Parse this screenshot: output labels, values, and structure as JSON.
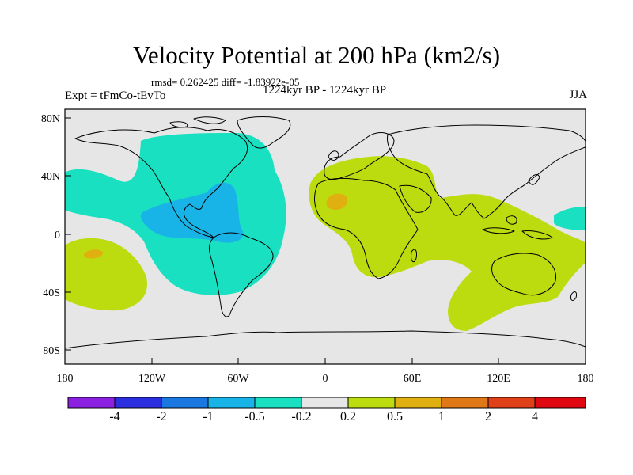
{
  "header": {
    "title": "Velocity Potential at 200 hPa (km2/s)",
    "stats": "rmsd= 0.262425 diff= -1.83922e-05",
    "period": "1224kyr BP - 1224kyr BP",
    "experiment": "Expt = tFmCo-tEvTo",
    "season": "JJA"
  },
  "axes": {
    "lat_labels": [
      "80N",
      "40N",
      "0",
      "40S",
      "80S"
    ],
    "lon_labels": [
      "180",
      "120W",
      "60W",
      "0",
      "60E",
      "120E",
      "180"
    ]
  },
  "colorbar": {
    "colors": [
      "#8c20e0",
      "#2b2fe0",
      "#1a78e0",
      "#18b4e8",
      "#18e0c0",
      "#e6e6e6",
      "#bcdc10",
      "#e0b010",
      "#e07818",
      "#e04018",
      "#e00810"
    ],
    "labels": [
      "-4",
      "-2",
      "-1",
      "-0.5",
      "-0.2",
      "0.2",
      "0.5",
      "1",
      "2",
      "4"
    ]
  },
  "map_colors": {
    "ocean_bg": "#e6e6e6",
    "negative": "#18e0c0",
    "strong_negative": "#18b4e8",
    "positive": "#bcdc10",
    "strong_positive": "#e0b010"
  }
}
